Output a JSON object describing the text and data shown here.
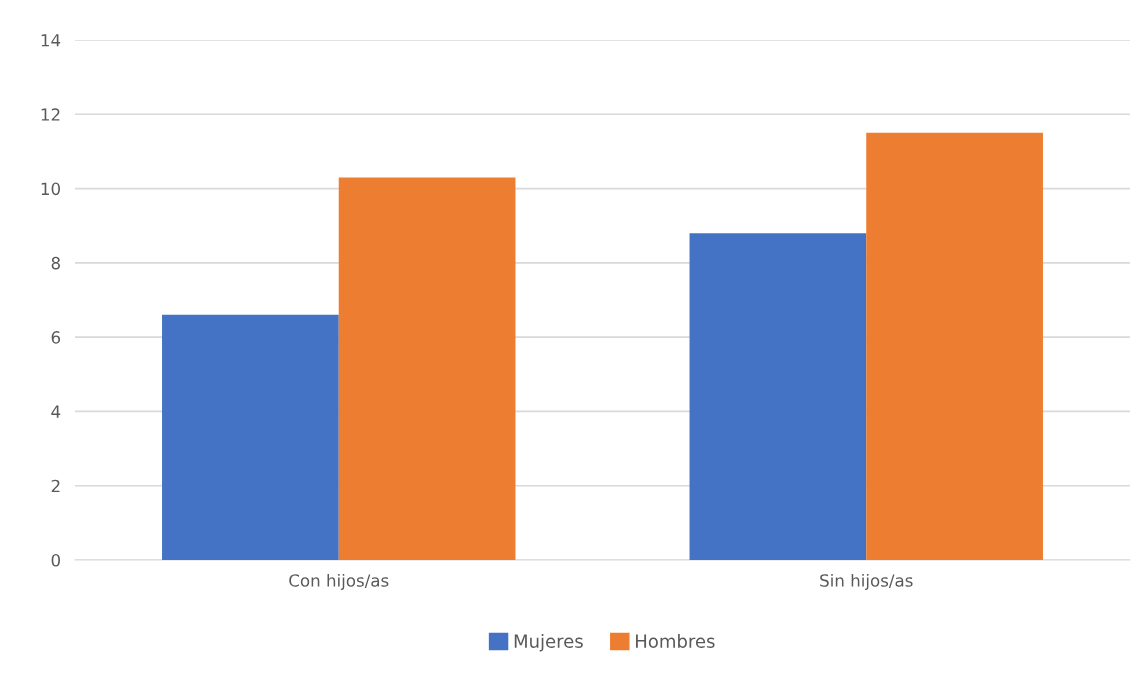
{
  "chart_data": {
    "type": "bar",
    "categories": [
      "Con hijos/as",
      "Sin hijos/as"
    ],
    "series": [
      {
        "name": "Mujeres",
        "color": "#4472c4",
        "values": [
          6.6,
          8.8
        ]
      },
      {
        "name": "Hombres",
        "color": "#ed7d31",
        "values": [
          10.3,
          11.5
        ]
      }
    ],
    "ylim": [
      0,
      14
    ],
    "yticks": [
      0,
      2,
      4,
      6,
      8,
      10,
      12,
      14
    ],
    "grid": "y",
    "legend": "bottom"
  }
}
